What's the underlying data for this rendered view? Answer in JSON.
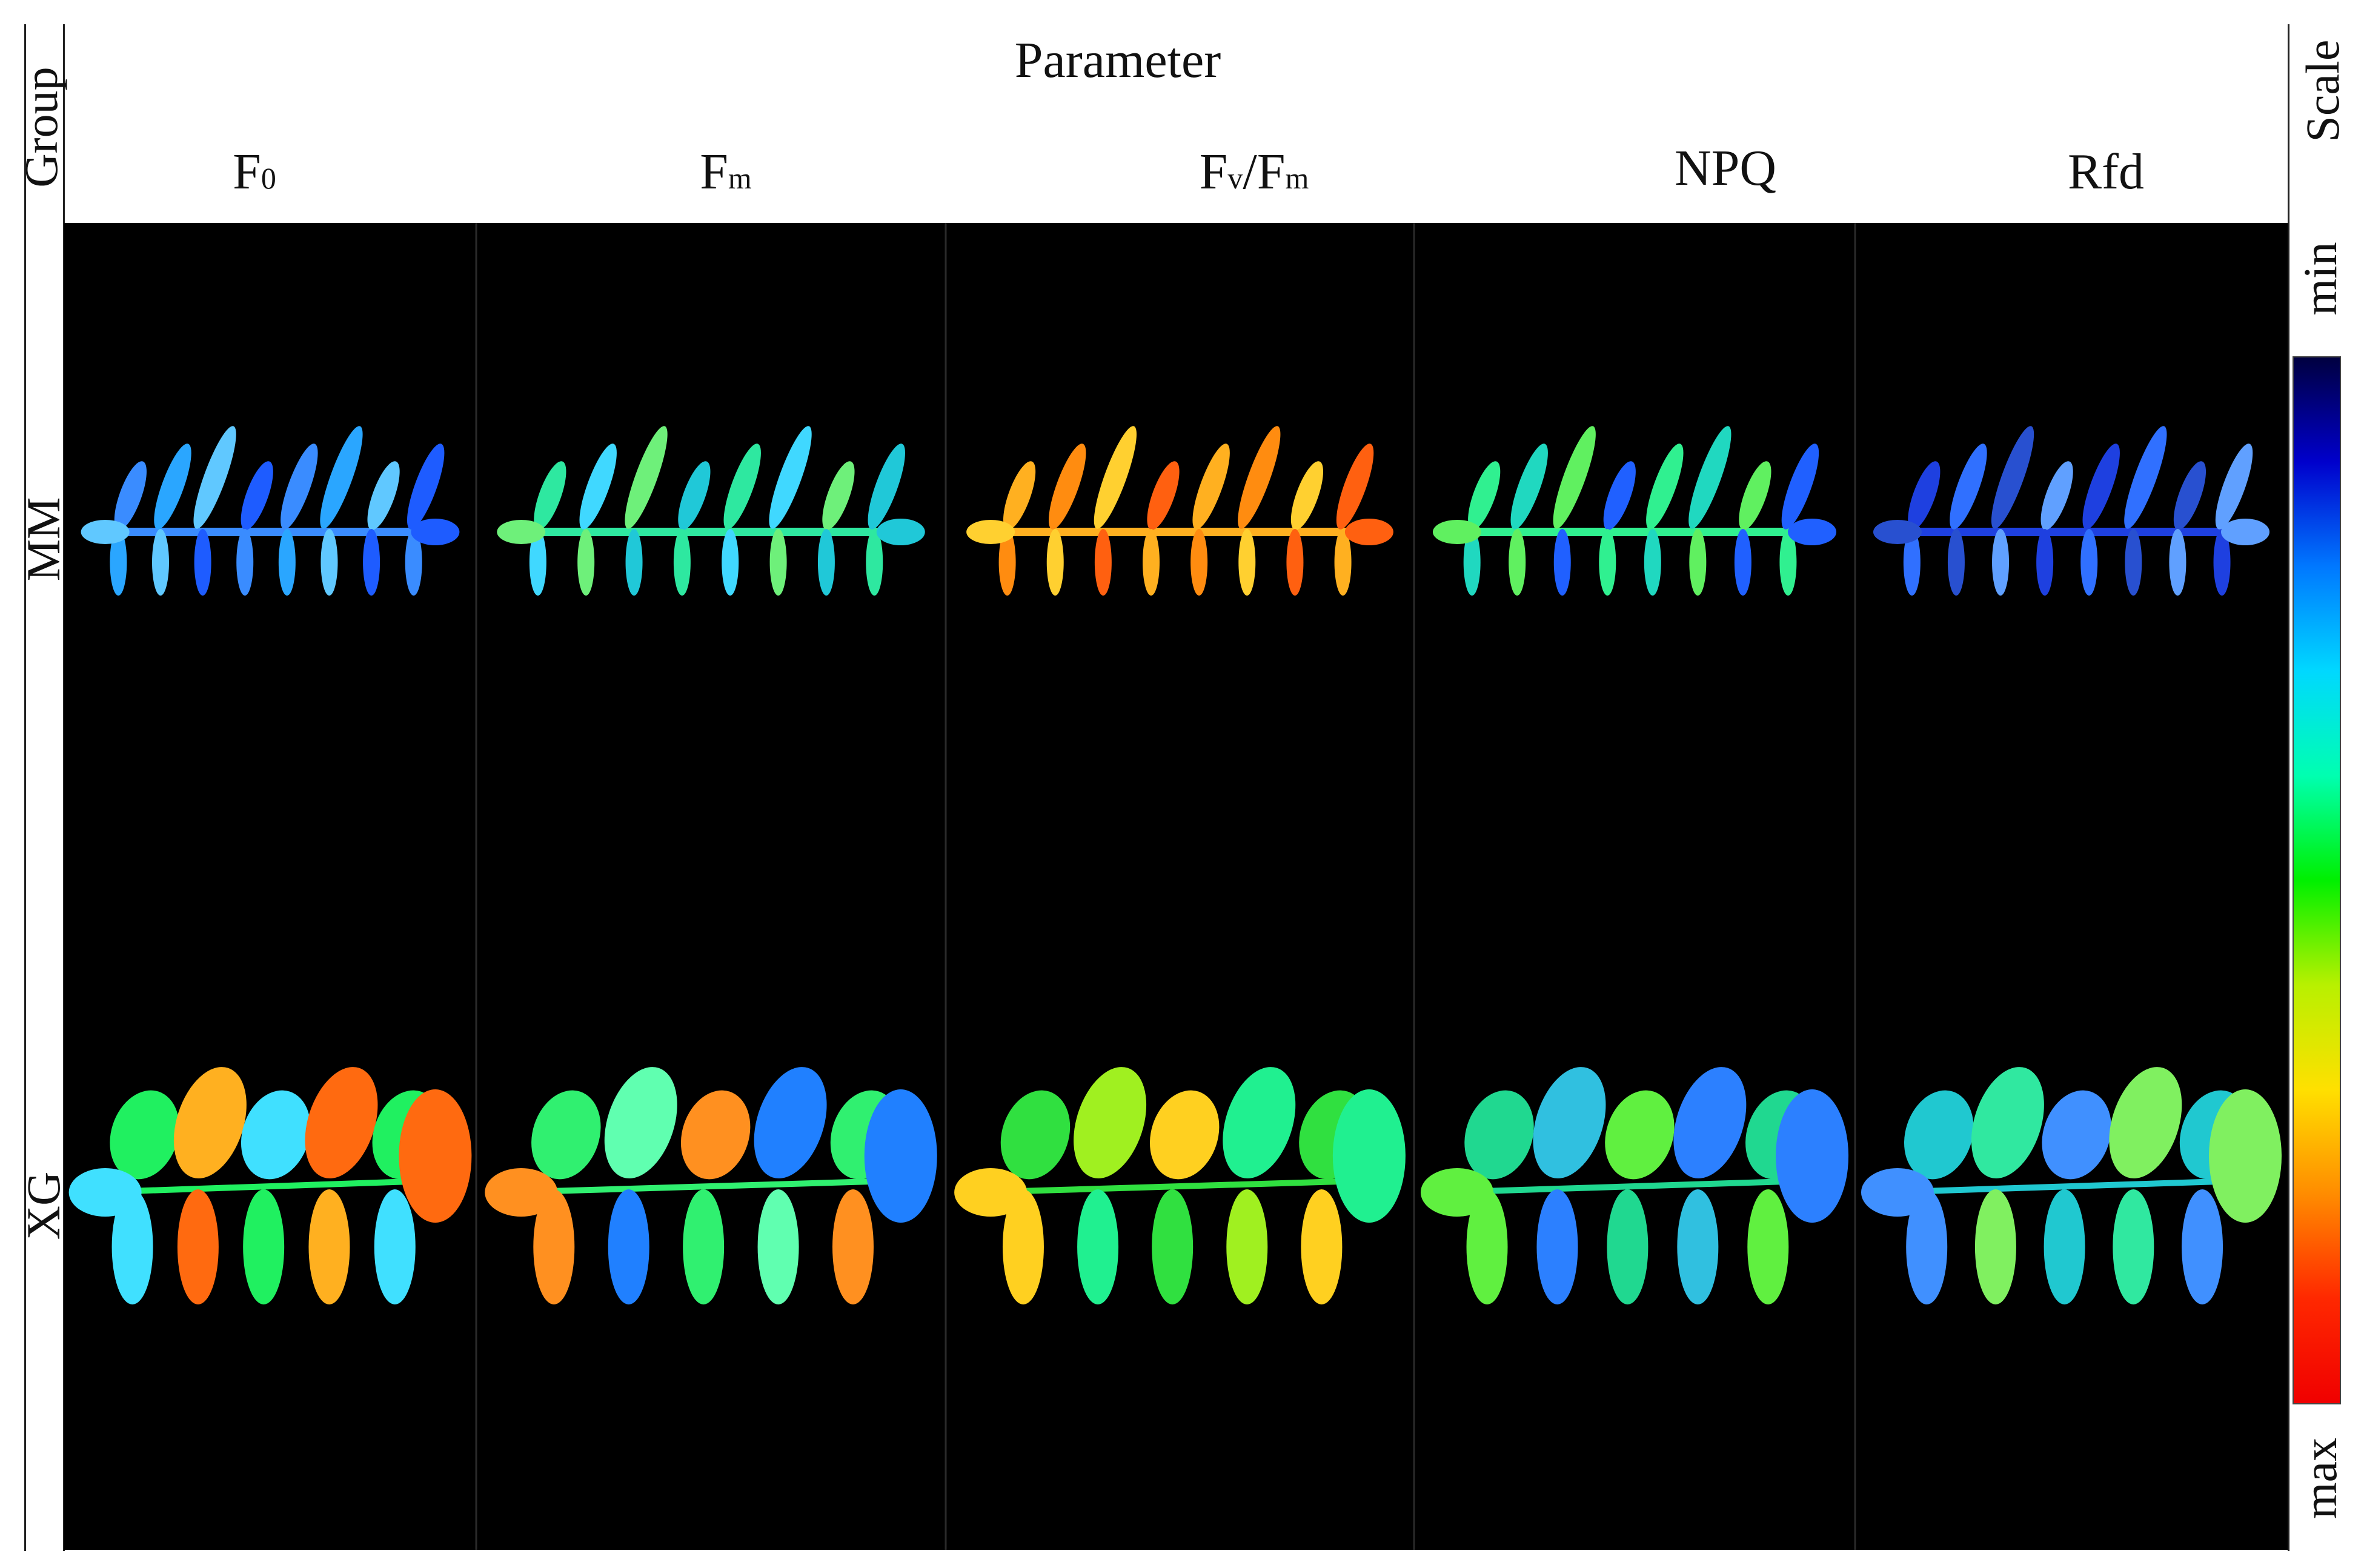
{
  "header": {
    "group_label": "Group",
    "parameter_label": "Parameter",
    "scale_label": "Scale"
  },
  "columns": [
    {
      "main": "F",
      "sub": "0"
    },
    {
      "main": "F",
      "sub": "m"
    },
    {
      "main": "F",
      "sub": "v",
      "slash": "/F",
      "sub2": "m"
    },
    {
      "main": "NPQ"
    },
    {
      "main": "Rfd"
    }
  ],
  "rows": [
    "MM",
    "XG"
  ],
  "scale": {
    "min_label": "min",
    "max_label": "max",
    "colormap": [
      "#000040",
      "#0000cc",
      "#0078ff",
      "#00d8ff",
      "#00ffb0",
      "#00f000",
      "#b8f000",
      "#ffe000",
      "#ff8c00",
      "#ff2800",
      "#f00000"
    ]
  },
  "images": [
    {
      "row": 0,
      "col": 0,
      "colors": [
        "#3a8cff",
        "#2aa6ff",
        "#60c8ff",
        "#1e5cff"
      ]
    },
    {
      "row": 0,
      "col": 1,
      "colors": [
        "#2ee8a0",
        "#40d8ff",
        "#6ef07a",
        "#20c8d8"
      ]
    },
    {
      "row": 0,
      "col": 2,
      "colors": [
        "#ffb020",
        "#ff8c10",
        "#ffd030",
        "#ff6010"
      ]
    },
    {
      "row": 0,
      "col": 3,
      "colors": [
        "#30f090",
        "#20d8c0",
        "#60f060",
        "#2060ff"
      ]
    },
    {
      "row": 0,
      "col": 4,
      "colors": [
        "#1e40e0",
        "#3070ff",
        "#2850d0",
        "#60a0ff"
      ]
    },
    {
      "row": 1,
      "col": 0,
      "colors": [
        "#20f060",
        "#ffb020",
        "#40e0ff",
        "#ff6a10"
      ]
    },
    {
      "row": 1,
      "col": 1,
      "colors": [
        "#30f070",
        "#60ffb0",
        "#ff9020",
        "#2080ff"
      ]
    },
    {
      "row": 1,
      "col": 2,
      "colors": [
        "#30e040",
        "#a0f020",
        "#ffd020",
        "#20f090"
      ]
    },
    {
      "row": 1,
      "col": 3,
      "colors": [
        "#20d890",
        "#30c0e0",
        "#60f040",
        "#2c80ff"
      ]
    },
    {
      "row": 1,
      "col": 4,
      "colors": [
        "#20c8d0",
        "#30e8a0",
        "#4090ff",
        "#80f060"
      ]
    }
  ]
}
